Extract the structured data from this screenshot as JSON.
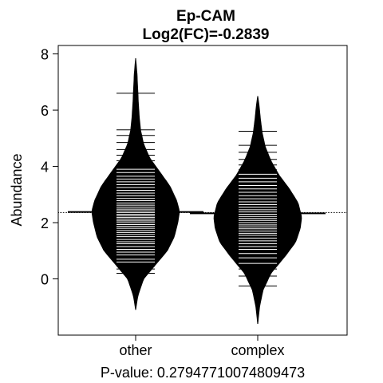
{
  "chart_data": {
    "type": "beanplot",
    "title": "Ep-CAM",
    "subtitle": "Log2(FC)=-0.2839",
    "ylabel": "Abundance",
    "xlabel": "P-value: 0.27947710074809473",
    "categories": [
      "other",
      "complex"
    ],
    "ylim": [
      -2,
      8.3
    ],
    "yticks": [
      0,
      2,
      4,
      6,
      8
    ],
    "overall_mean_line": 2.36,
    "grid": false,
    "legend": "none",
    "series": [
      {
        "category": "other",
        "mean": 2.38,
        "density_range": [
          -1.1,
          7.85
        ],
        "density_profile": [
          [
            -1.1,
            0.0
          ],
          [
            -0.6,
            0.05
          ],
          [
            0.0,
            0.18
          ],
          [
            0.5,
            0.45
          ],
          [
            1.0,
            0.72
          ],
          [
            1.5,
            0.88
          ],
          [
            2.0,
            0.96
          ],
          [
            2.4,
            1.0
          ],
          [
            2.8,
            0.93
          ],
          [
            3.3,
            0.78
          ],
          [
            3.8,
            0.55
          ],
          [
            4.3,
            0.32
          ],
          [
            4.8,
            0.18
          ],
          [
            5.3,
            0.11
          ],
          [
            5.8,
            0.08
          ],
          [
            6.3,
            0.06
          ],
          [
            6.8,
            0.045
          ],
          [
            7.3,
            0.03
          ],
          [
            7.85,
            0.0
          ]
        ],
        "observations": [
          0.2,
          0.35,
          0.45,
          0.6,
          0.7,
          0.85,
          0.95,
          1.05,
          1.15,
          1.25,
          1.32,
          1.4,
          1.5,
          1.58,
          1.65,
          1.72,
          1.8,
          1.87,
          1.93,
          2.0,
          2.06,
          2.12,
          2.18,
          2.24,
          2.3,
          2.36,
          2.42,
          2.48,
          2.55,
          2.62,
          2.7,
          2.78,
          2.86,
          2.95,
          3.05,
          3.15,
          3.25,
          3.35,
          3.45,
          3.55,
          3.65,
          3.78,
          3.9,
          4.05,
          4.2,
          4.4,
          4.6,
          4.85,
          5.1,
          5.3,
          6.6
        ]
      },
      {
        "category": "complex",
        "mean": 2.33,
        "density_range": [
          -1.6,
          6.5
        ],
        "density_profile": [
          [
            -1.6,
            0.0
          ],
          [
            -1.0,
            0.04
          ],
          [
            -0.4,
            0.12
          ],
          [
            0.2,
            0.3
          ],
          [
            0.8,
            0.62
          ],
          [
            1.3,
            0.86
          ],
          [
            1.8,
            0.97
          ],
          [
            2.2,
            1.0
          ],
          [
            2.7,
            0.92
          ],
          [
            3.2,
            0.72
          ],
          [
            3.7,
            0.48
          ],
          [
            4.2,
            0.3
          ],
          [
            4.7,
            0.17
          ],
          [
            5.2,
            0.1
          ],
          [
            5.7,
            0.06
          ],
          [
            6.1,
            0.035
          ],
          [
            6.5,
            0.0
          ]
        ],
        "observations": [
          -0.25,
          0.1,
          0.35,
          0.55,
          0.75,
          0.9,
          1.05,
          1.15,
          1.25,
          1.35,
          1.45,
          1.55,
          1.62,
          1.7,
          1.78,
          1.85,
          1.92,
          2.0,
          2.08,
          2.15,
          2.22,
          2.3,
          2.38,
          2.46,
          2.55,
          2.64,
          2.74,
          2.85,
          2.96,
          3.08,
          3.2,
          3.32,
          3.45,
          3.58,
          3.72,
          3.88,
          4.05,
          4.25,
          4.5,
          4.75,
          5.25
        ]
      }
    ],
    "colors": {
      "bean_fill": "#000000",
      "observation_line": "#ffffff",
      "axis": "#000000",
      "background": "#ffffff"
    }
  }
}
